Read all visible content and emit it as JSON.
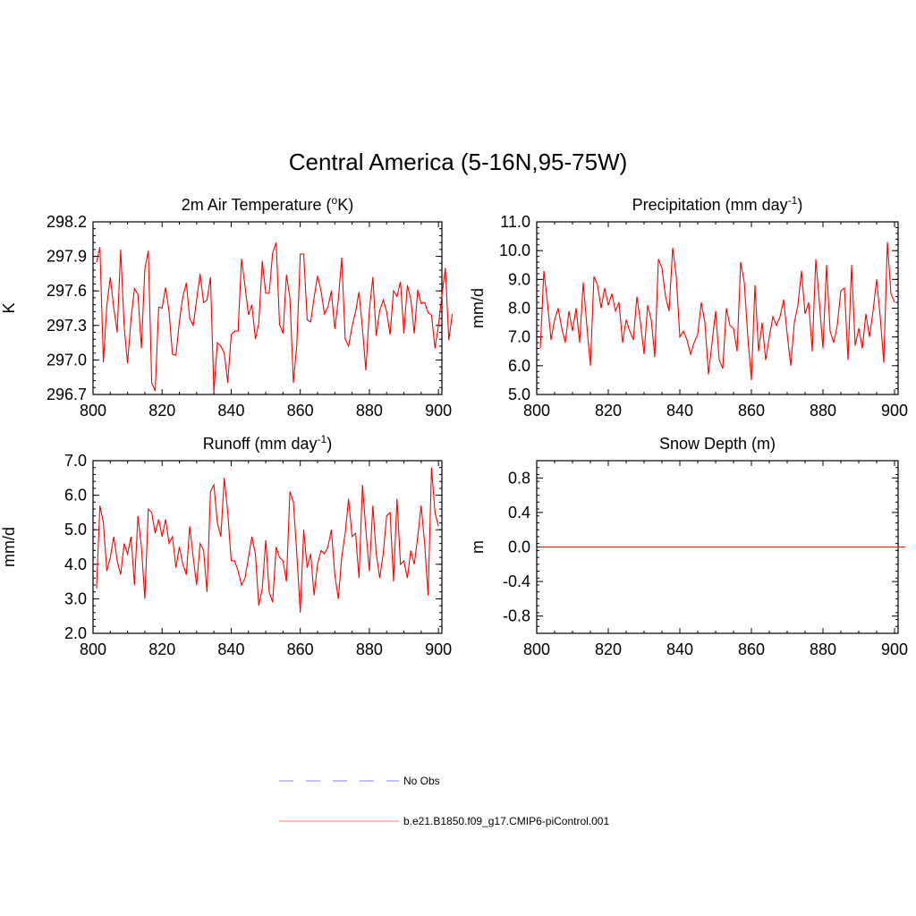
{
  "figure_title": "Central America (5-16N,95-75W)",
  "colors": {
    "model": "#ff0000",
    "obs": "#9999ff",
    "axis": "#000000"
  },
  "legend": {
    "obs_label": "No Obs",
    "model_label": "b.e21.B1850.f09_g17.CMIP6-piControl.001"
  },
  "chart_data": [
    {
      "id": "tas",
      "type": "line",
      "title": "2m Air Temperature (",
      "title_sup": "o",
      "title_after": "K)",
      "ylabel": "K",
      "xlim": [
        800,
        901
      ],
      "ylim": [
        296.7,
        298.2
      ],
      "xticks": [
        800,
        820,
        840,
        860,
        880,
        900
      ],
      "yticks": [
        296.7,
        297.0,
        297.3,
        297.6,
        297.9,
        298.2
      ],
      "ytick_labels": [
        "296.7",
        "297.0",
        "297.3",
        "297.6",
        "297.9",
        "298.2"
      ],
      "x_start": 801,
      "values": [
        297.85,
        297.98,
        296.98,
        297.47,
        297.72,
        297.45,
        297.24,
        297.96,
        297.29,
        296.97,
        297.36,
        297.62,
        297.57,
        297.1,
        297.79,
        297.95,
        296.8,
        296.73,
        297.46,
        297.45,
        297.63,
        297.42,
        297.05,
        297.04,
        297.33,
        297.55,
        297.67,
        297.36,
        297.3,
        297.52,
        297.75,
        297.5,
        297.52,
        297.72,
        296.72,
        297.15,
        297.12,
        297.06,
        296.8,
        297.22,
        297.25,
        297.25,
        297.88,
        297.64,
        297.39,
        297.48,
        297.18,
        297.32,
        297.86,
        297.58,
        297.58,
        297.93,
        298.02,
        297.31,
        297.23,
        297.74,
        297.54,
        296.8,
        297.13,
        297.92,
        297.92,
        297.35,
        297.33,
        297.54,
        297.73,
        297.6,
        297.4,
        297.46,
        297.6,
        297.27,
        297.52,
        297.89,
        297.18,
        297.12,
        297.29,
        297.42,
        297.59,
        297.27,
        296.91,
        297.43,
        297.72,
        297.21,
        297.43,
        297.52,
        297.42,
        297.22,
        297.6,
        297.55,
        297.68,
        297.23,
        297.65,
        297.53,
        297.23,
        297.61,
        297.49,
        297.5,
        297.41,
        297.39,
        297.1,
        297.3,
        297.56,
        297.8,
        297.17,
        297.4
      ]
    },
    {
      "id": "pr",
      "type": "line",
      "title": "Precipitation (mm day",
      "title_sup": "-1",
      "title_after": ")",
      "ylabel": "mm/d",
      "xlim": [
        800,
        901
      ],
      "ylim": [
        5.0,
        11.0
      ],
      "xticks": [
        800,
        820,
        840,
        860,
        880,
        900
      ],
      "yticks": [
        5.0,
        6.0,
        7.0,
        8.0,
        9.0,
        10.0,
        11.0
      ],
      "ytick_labels": [
        "5.0",
        "6.0",
        "7.0",
        "8.0",
        "9.0",
        "10.0",
        "11.0"
      ],
      "x_start": 801,
      "values": [
        6.6,
        9.3,
        8.2,
        6.9,
        7.6,
        8.0,
        7.3,
        6.8,
        7.9,
        7.2,
        8.0,
        6.8,
        8.9,
        7.4,
        6.0,
        9.1,
        8.8,
        8.0,
        8.7,
        8.1,
        8.5,
        7.9,
        8.2,
        6.8,
        7.6,
        7.2,
        6.9,
        8.4,
        7.5,
        6.4,
        8.1,
        7.6,
        6.3,
        9.7,
        9.4,
        8.4,
        7.9,
        10.1,
        9.1,
        7.0,
        7.2,
        6.9,
        6.4,
        6.8,
        7.1,
        8.2,
        7.5,
        5.7,
        6.8,
        7.9,
        6.2,
        5.9,
        8.0,
        7.4,
        7.3,
        6.5,
        9.6,
        8.9,
        7.0,
        5.5,
        8.8,
        6.5,
        7.5,
        6.2,
        7.0,
        7.7,
        7.4,
        7.7,
        8.3,
        7.1,
        6.0,
        7.5,
        8.1,
        9.3,
        7.8,
        8.2,
        6.5,
        9.7,
        8.2,
        6.6,
        9.5,
        7.2,
        6.8,
        7.4,
        8.6,
        8.7,
        6.2,
        9.5,
        6.7,
        7.3,
        6.6,
        7.8,
        7.0,
        7.9,
        9.0,
        7.7,
        6.1,
        10.3,
        8.5,
        8.2
      ]
    },
    {
      "id": "qrunoff",
      "type": "line",
      "title": "Runoff (mm day",
      "title_sup": "-1",
      "title_after": ")",
      "ylabel": "mm/d",
      "xlim": [
        800,
        901
      ],
      "ylim": [
        2.0,
        7.0
      ],
      "xticks": [
        800,
        820,
        840,
        860,
        880,
        900
      ],
      "yticks": [
        2.0,
        3.0,
        4.0,
        5.0,
        6.0,
        7.0
      ],
      "ytick_labels": [
        "2.0",
        "3.0",
        "4.0",
        "5.0",
        "6.0",
        "7.0"
      ],
      "x_start": 801,
      "values": [
        3.3,
        5.7,
        5.2,
        3.8,
        4.2,
        4.8,
        4.1,
        3.7,
        4.6,
        4.3,
        4.8,
        3.4,
        5.4,
        4.5,
        3.0,
        5.6,
        5.5,
        4.9,
        5.3,
        4.8,
        5.3,
        4.6,
        4.8,
        3.9,
        4.5,
        4.0,
        3.7,
        5.1,
        4.2,
        3.4,
        4.6,
        4.4,
        3.2,
        6.1,
        6.3,
        5.2,
        4.8,
        6.5,
        5.5,
        4.1,
        4.1,
        3.8,
        3.4,
        3.6,
        4.2,
        4.8,
        4.3,
        2.8,
        3.3,
        4.7,
        3.2,
        2.9,
        4.5,
        4.2,
        4.1,
        3.5,
        6.1,
        5.8,
        4.3,
        2.6,
        5.0,
        3.9,
        4.3,
        3.1,
        4.0,
        4.4,
        4.3,
        4.5,
        5.0,
        3.7,
        3.0,
        4.2,
        4.9,
        5.9,
        4.8,
        4.9,
        3.6,
        6.3,
        5.0,
        3.8,
        5.7,
        4.3,
        3.6,
        4.3,
        5.4,
        5.5,
        3.5,
        5.9,
        4.0,
        4.1,
        3.6,
        4.4,
        4.0,
        4.8,
        5.7,
        4.6,
        3.1,
        6.8,
        5.5,
        5.1
      ]
    },
    {
      "id": "snowdp",
      "type": "line",
      "title": "Snow Depth (m)",
      "title_sup": "",
      "title_after": "",
      "ylabel": "m",
      "xlim": [
        800,
        901
      ],
      "ylim": [
        -1.0,
        1.0
      ],
      "xticks": [
        800,
        820,
        840,
        860,
        880,
        900
      ],
      "yticks": [
        -0.8,
        -0.4,
        0.0,
        0.4,
        0.8
      ],
      "ytick_labels": [
        "-0.8",
        "-0.4",
        "0.0",
        "0.4",
        "0.8"
      ],
      "x_start": 801,
      "values": [
        0,
        0,
        0,
        0,
        0,
        0,
        0,
        0,
        0,
        0,
        0,
        0,
        0,
        0,
        0,
        0,
        0,
        0,
        0,
        0,
        0,
        0,
        0,
        0,
        0,
        0,
        0,
        0,
        0,
        0,
        0,
        0,
        0,
        0,
        0,
        0,
        0,
        0,
        0,
        0,
        0,
        0,
        0,
        0,
        0,
        0,
        0,
        0,
        0,
        0,
        0,
        0,
        0,
        0,
        0,
        0,
        0,
        0,
        0,
        0,
        0,
        0,
        0,
        0,
        0,
        0,
        0,
        0,
        0,
        0,
        0,
        0,
        0,
        0,
        0,
        0,
        0,
        0,
        0,
        0,
        0,
        0,
        0,
        0,
        0,
        0,
        0,
        0,
        0,
        0,
        0,
        0,
        0,
        0,
        0,
        0,
        0,
        0,
        0,
        0,
        0,
        0,
        0
      ]
    }
  ]
}
